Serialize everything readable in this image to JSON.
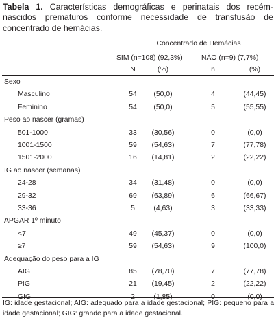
{
  "caption": {
    "label": "Tabela 1.",
    "text": "Características demográficas e perinatais dos recém-nascidos prematuros conforme necessidade de transfusão de concentrado de hemácias."
  },
  "header": {
    "group": "Concentrado de Hemácias",
    "sim": "SIM (n=108) (92,3%)",
    "nao": "NÃO (n=9) (7,7%)",
    "sub": [
      "N",
      "(%)",
      "n",
      "(%)"
    ]
  },
  "sections": [
    {
      "title": "Sexo",
      "rows": [
        {
          "label": "Masculino",
          "values": [
            "54",
            "(50,0)",
            "4",
            "(44,45)"
          ]
        },
        {
          "label": "Feminino",
          "values": [
            "54",
            "(50,0)",
            "5",
            "(55,55)"
          ]
        }
      ]
    },
    {
      "title": "Peso ao nascer (gramas)",
      "rows": [
        {
          "label": "501-1000",
          "values": [
            "33",
            "(30,56)",
            "0",
            "(0,0)"
          ]
        },
        {
          "label": "1001-1500",
          "values": [
            "59",
            "(54,63)",
            "7",
            "(77,78)"
          ]
        },
        {
          "label": "1501-2000",
          "values": [
            "16",
            "(14,81)",
            "2",
            "(22,22)"
          ]
        }
      ]
    },
    {
      "title": "IG ao nascer (semanas)",
      "rows": [
        {
          "label": "24-28",
          "values": [
            "34",
            "(31,48)",
            "0",
            "(0,0)"
          ]
        },
        {
          "label": "29-32",
          "values": [
            "69",
            "(63,89)",
            "6",
            "(66,67)"
          ]
        },
        {
          "label": "33-36",
          "values": [
            "5",
            "(4,63)",
            "3",
            "(33,33)"
          ]
        }
      ]
    },
    {
      "title": "APGAR 1º minuto",
      "rows": [
        {
          "label": "<7",
          "values": [
            "49",
            "(45,37)",
            "0",
            "(0,0)"
          ]
        },
        {
          "label": "≥7",
          "values": [
            "59",
            "(54,63)",
            "9",
            "(100,0)"
          ]
        }
      ]
    },
    {
      "title": "Adequação do peso para a IG",
      "rows": [
        {
          "label": "AIG",
          "values": [
            "85",
            "(78,70)",
            "7",
            "(77,78)"
          ]
        },
        {
          "label": "PIG",
          "values": [
            "21",
            "(19,45)",
            "2",
            "(22,22)"
          ]
        },
        {
          "label": "GIG",
          "values": [
            "2",
            "(1,85)",
            "0",
            "(0,0)"
          ]
        }
      ]
    }
  ],
  "footnote": "IG: idade gestacional; AIG: adequado para a idade gestacional; PIG: pequeno para a idade gestacional; GIG: grande para a idade gestacional."
}
